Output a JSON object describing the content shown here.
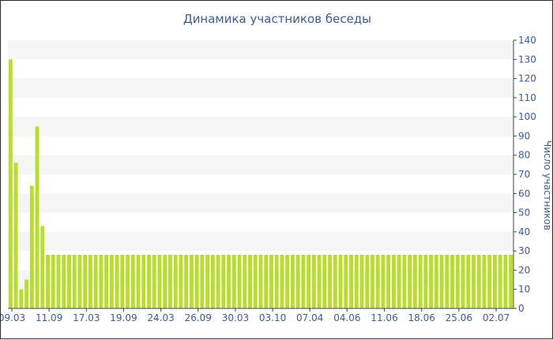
{
  "chart_data": {
    "type": "bar",
    "title": "Динамика участников беседы",
    "xlabel": "",
    "ylabel": "Число участников",
    "ylim": [
      0,
      140
    ],
    "ytick_step": 10,
    "x_tick_labels": [
      "09.03",
      "11.09",
      "17.03",
      "19.09",
      "24.03",
      "26.09",
      "30.03",
      "03.10",
      "07.04",
      "04.06",
      "11.06",
      "18.06",
      "25.06",
      "02.07"
    ],
    "values": [
      130,
      76,
      10,
      15,
      64,
      95,
      43,
      28,
      28,
      28,
      28,
      28,
      28,
      28,
      28,
      28,
      28,
      28,
      28,
      28,
      28,
      28,
      28,
      28,
      28,
      28,
      28,
      28,
      28,
      28,
      28,
      28,
      28,
      28,
      28,
      28,
      28,
      28,
      28,
      28,
      28,
      28,
      28,
      28,
      28,
      28,
      28,
      28,
      28,
      28,
      28,
      28,
      28,
      28,
      28,
      28,
      28,
      28,
      28,
      28,
      28,
      28,
      28,
      28,
      28,
      28,
      28,
      28,
      28,
      28,
      28,
      28,
      28,
      28,
      28,
      28,
      28,
      28,
      28,
      28,
      28,
      28,
      28,
      28,
      28,
      28,
      28,
      28,
      28,
      28,
      28,
      28,
      28,
      28,
      28
    ],
    "bar_color": "#b8dd2a",
    "grid": "horizontal bands",
    "legend": "none"
  }
}
